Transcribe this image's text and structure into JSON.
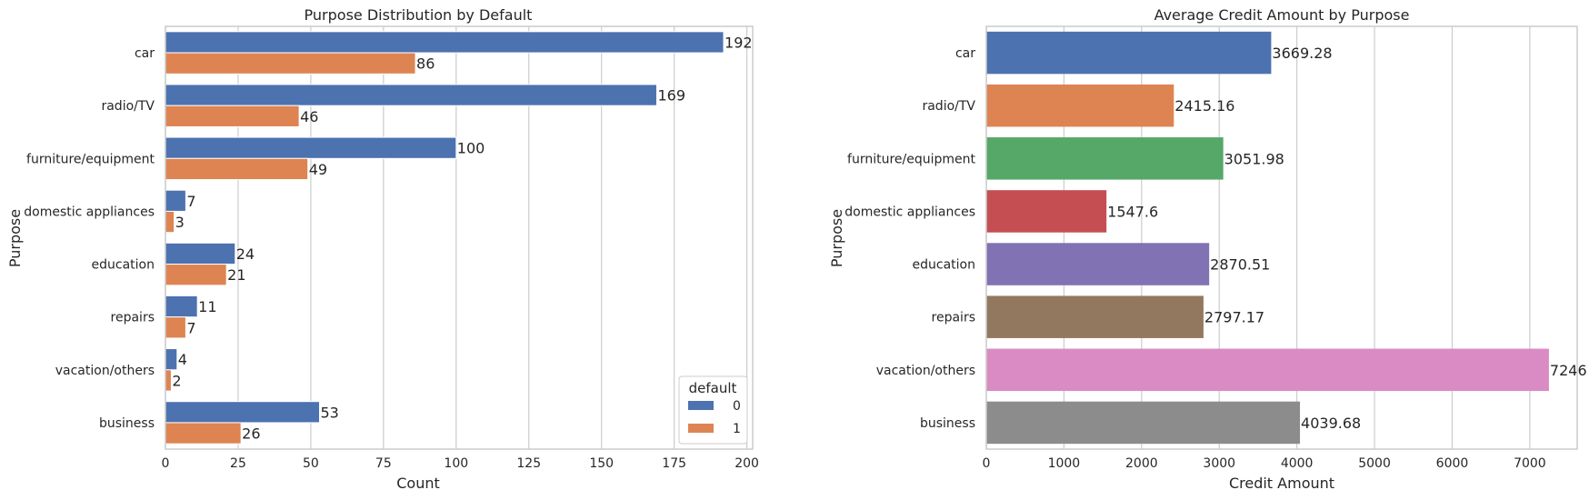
{
  "chart_data": [
    {
      "type": "bar",
      "orientation": "horizontal",
      "title": "Purpose Distribution by Default",
      "xlabel": "Count",
      "ylabel": "Purpose",
      "categories": [
        "car",
        "radio/TV",
        "furniture/equipment",
        "domestic appliances",
        "education",
        "repairs",
        "vacation/others",
        "business"
      ],
      "series": [
        {
          "name": "0",
          "color": "#4c72b0",
          "values": [
            192,
            169,
            100,
            7,
            24,
            11,
            4,
            53
          ]
        },
        {
          "name": "1",
          "color": "#dd8452",
          "values": [
            86,
            46,
            49,
            3,
            21,
            7,
            2,
            26
          ]
        }
      ],
      "xlim": [
        0,
        202
      ],
      "xticks": [
        0,
        25,
        50,
        75,
        100,
        125,
        150,
        175,
        200
      ],
      "grid": "vertical",
      "legend": {
        "title": "default",
        "placement": "lower-right"
      }
    },
    {
      "type": "bar",
      "orientation": "horizontal",
      "title": "Average Credit Amount by Purpose",
      "xlabel": "Credit Amount",
      "ylabel": "Purpose",
      "categories": [
        "car",
        "radio/TV",
        "furniture/equipment",
        "domestic appliances",
        "education",
        "repairs",
        "vacation/others",
        "business"
      ],
      "values": [
        3669.28,
        2415.16,
        3051.98,
        1547.6,
        2870.51,
        2797.17,
        7246,
        4039.68
      ],
      "value_labels": [
        "3669.28",
        "2415.16",
        "3051.98",
        "1547.6",
        "2870.51",
        "2797.17",
        "7246",
        "4039.68"
      ],
      "colors": [
        "#4c72b0",
        "#dd8452",
        "#55a868",
        "#c44e52",
        "#8172b3",
        "#937860",
        "#da8bc3",
        "#8c8c8c"
      ],
      "xlim": [
        0,
        7610
      ],
      "xticks": [
        0,
        1000,
        2000,
        3000,
        4000,
        5000,
        6000,
        7000
      ],
      "grid": "vertical"
    }
  ]
}
